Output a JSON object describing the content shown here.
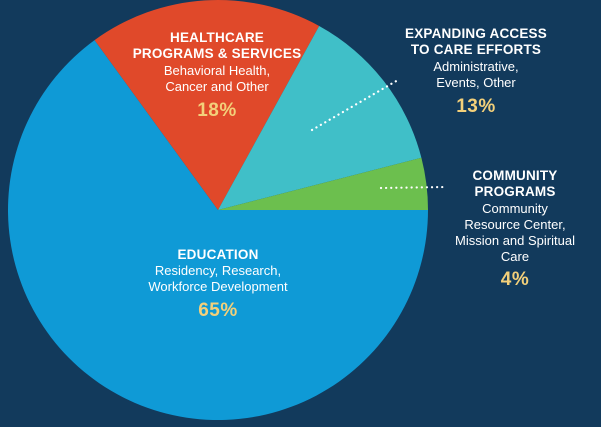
{
  "chart_data": {
    "type": "pie",
    "title": "",
    "slices": [
      {
        "category": "EDUCATION",
        "detail": "Residency, Research, Workforce Development",
        "value": 65,
        "label": "65%",
        "color": "#0f9ad6"
      },
      {
        "category": "HEALTHCARE PROGRAMS & SERVICES",
        "detail": "Behavioral Health, Cancer and Other",
        "value": 18,
        "label": "18%",
        "color": "#e0492a"
      },
      {
        "category": "EXPANDING ACCESS TO CARE EFFORTS",
        "detail": "Administrative, Events, Other",
        "value": 13,
        "label": "13%",
        "color": "#40bfc8"
      },
      {
        "category": "COMMUNITY PROGRAMS",
        "detail": "Community Resource Center, Mission and Spiritual Care",
        "value": 4,
        "label": "4%",
        "color": "#6cbf4e"
      }
    ]
  },
  "labels": {
    "healthcare": {
      "line1": "HEALTHCARE",
      "line2": "PROGRAMS & SERVICES",
      "detail1": "Behavioral Health,",
      "detail2": "Cancer and Other",
      "pct": "18%"
    },
    "access": {
      "line1": "EXPANDING ACCESS",
      "line2": "TO CARE EFFORTS",
      "detail1": "Administrative,",
      "detail2": "Events, Other",
      "pct": "13%"
    },
    "community": {
      "line1": "COMMUNITY",
      "line2": "PROGRAMS",
      "detail1": "Community",
      "detail2": "Resource Center,",
      "detail3": "Mission and Spiritual",
      "detail4": "Care",
      "pct": "4%"
    },
    "education": {
      "line1": "EDUCATION",
      "detail1": "Residency, Research,",
      "detail2": "Workforce Development",
      "pct": "65%"
    }
  },
  "colors": {
    "background": "#123a5c",
    "percent_text": "#f3d07a",
    "leader": "#ffffff"
  }
}
